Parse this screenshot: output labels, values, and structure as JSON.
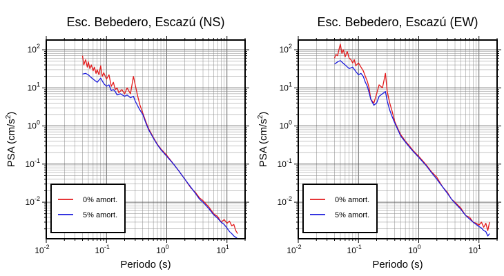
{
  "chart_data": [
    {
      "type": "line",
      "title": "Esc. Bebedero, Escazú (NS)",
      "xlabel": "Periodo (s)",
      "ylabel_main": "PSA (cm/s",
      "ylabel_sup": "2",
      "ylabel_close": ")",
      "xscale": "log",
      "yscale": "log",
      "xlim": [
        0.01,
        20
      ],
      "ylim": [
        0.0011,
        180
      ],
      "grid": true,
      "legend_position": "bottom-left",
      "x_ticks": [
        {
          "value": 0.01,
          "base": "10",
          "exp": "-2"
        },
        {
          "value": 0.1,
          "base": "10",
          "exp": "-1"
        },
        {
          "value": 1,
          "base": "10",
          "exp": "0"
        },
        {
          "value": 10,
          "base": "10",
          "exp": "1"
        }
      ],
      "y_ticks": [
        {
          "value": 0.01,
          "base": "10",
          "exp": "-2"
        },
        {
          "value": 0.1,
          "base": "10",
          "exp": "-1"
        },
        {
          "value": 1,
          "base": "10",
          "exp": "0"
        },
        {
          "value": 10,
          "base": "10",
          "exp": "1"
        },
        {
          "value": 100,
          "base": "10",
          "exp": "2"
        }
      ],
      "series": [
        {
          "name": "0% amort.",
          "color": "#e31a1c",
          "x": [
            0.04,
            0.042,
            0.045,
            0.048,
            0.05,
            0.053,
            0.056,
            0.06,
            0.063,
            0.067,
            0.07,
            0.075,
            0.08,
            0.085,
            0.09,
            0.1,
            0.11,
            0.12,
            0.13,
            0.14,
            0.15,
            0.16,
            0.18,
            0.2,
            0.22,
            0.25,
            0.28,
            0.3,
            0.33,
            0.36,
            0.4,
            0.45,
            0.5,
            0.6,
            0.7,
            0.8,
            1.0,
            1.3,
            1.6,
            2.0,
            2.5,
            3.0,
            3.5,
            4.0,
            5.0,
            6.0,
            7.0,
            8.0,
            9.0,
            10.0,
            11.0,
            12.0,
            13.0,
            14.0,
            15.0
          ],
          "y": [
            70,
            40,
            55,
            35,
            48,
            32,
            40,
            28,
            35,
            24,
            30,
            22,
            38,
            20,
            25,
            17,
            22,
            11,
            14,
            9,
            10,
            7.5,
            9,
            7,
            10,
            7,
            20,
            12,
            6,
            3.5,
            2.2,
            1.3,
            0.85,
            0.5,
            0.33,
            0.25,
            0.17,
            0.1,
            0.065,
            0.04,
            0.024,
            0.018,
            0.013,
            0.011,
            0.0075,
            0.005,
            0.0042,
            0.003,
            0.0035,
            0.0028,
            0.0032,
            0.0024,
            0.0026,
            0.0018,
            0.0015
          ]
        },
        {
          "name": "5% amort.",
          "color": "#1a1adb",
          "x": [
            0.04,
            0.045,
            0.05,
            0.055,
            0.06,
            0.07,
            0.08,
            0.09,
            0.1,
            0.11,
            0.12,
            0.13,
            0.14,
            0.15,
            0.17,
            0.2,
            0.22,
            0.25,
            0.28,
            0.3,
            0.35,
            0.4,
            0.45,
            0.5,
            0.6,
            0.7,
            0.8,
            1.0,
            1.3,
            1.6,
            2.0,
            2.5,
            3.0,
            3.5,
            4.0,
            5.0,
            6.0,
            7.0,
            8.0,
            9.0,
            10.0,
            11.0,
            12.0,
            13.0,
            14.0,
            15.0
          ],
          "y": [
            23,
            24,
            22,
            19,
            17,
            14,
            18,
            13,
            11,
            12,
            8.5,
            9,
            8,
            6.5,
            7,
            6,
            6.5,
            5.5,
            6,
            4.5,
            2.8,
            2.0,
            1.2,
            0.8,
            0.48,
            0.32,
            0.24,
            0.16,
            0.1,
            0.065,
            0.04,
            0.025,
            0.017,
            0.012,
            0.01,
            0.0068,
            0.0047,
            0.0038,
            0.003,
            0.0026,
            0.0021,
            0.0017,
            0.0015,
            0.0013,
            0.0012,
            0.0011
          ]
        }
      ]
    },
    {
      "type": "line",
      "title": "Esc. Bebedero, Escazú (EW)",
      "xlabel": "Periodo (s)",
      "ylabel_main": "PSA (cm/s",
      "ylabel_sup": "2",
      "ylabel_close": ")",
      "xscale": "log",
      "yscale": "log",
      "xlim": [
        0.01,
        20
      ],
      "ylim": [
        0.0011,
        180
      ],
      "grid": true,
      "legend_position": "bottom-left",
      "x_ticks": [
        {
          "value": 0.01,
          "base": "10",
          "exp": "-2"
        },
        {
          "value": 0.1,
          "base": "10",
          "exp": "-1"
        },
        {
          "value": 1,
          "base": "10",
          "exp": "0"
        },
        {
          "value": 10,
          "base": "10",
          "exp": "1"
        }
      ],
      "y_ticks": [
        {
          "value": 0.01,
          "base": "10",
          "exp": "-2"
        },
        {
          "value": 0.1,
          "base": "10",
          "exp": "-1"
        },
        {
          "value": 1,
          "base": "10",
          "exp": "0"
        },
        {
          "value": 10,
          "base": "10",
          "exp": "1"
        },
        {
          "value": 100,
          "base": "10",
          "exp": "2"
        }
      ],
      "series": [
        {
          "name": "0% amort.",
          "color": "#e31a1c",
          "x": [
            0.04,
            0.042,
            0.045,
            0.048,
            0.05,
            0.053,
            0.056,
            0.06,
            0.065,
            0.07,
            0.075,
            0.08,
            0.085,
            0.09,
            0.1,
            0.11,
            0.12,
            0.13,
            0.14,
            0.15,
            0.16,
            0.18,
            0.2,
            0.22,
            0.25,
            0.28,
            0.3,
            0.33,
            0.36,
            0.4,
            0.45,
            0.5,
            0.6,
            0.7,
            0.8,
            1.0,
            1.3,
            1.6,
            2.0,
            2.5,
            3.0,
            3.5,
            4.0,
            5.0,
            6.0,
            7.0,
            8.0,
            9.0,
            10.0,
            11.0,
            12.0,
            13.0,
            14.0,
            15.0
          ],
          "y": [
            60,
            75,
            70,
            110,
            140,
            80,
            100,
            65,
            90,
            60,
            55,
            45,
            55,
            38,
            45,
            35,
            28,
            20,
            15,
            10,
            5,
            4,
            7,
            12,
            10,
            24,
            8,
            4,
            2.5,
            1.3,
            0.85,
            0.6,
            0.4,
            0.3,
            0.23,
            0.16,
            0.1,
            0.065,
            0.045,
            0.025,
            0.018,
            0.012,
            0.01,
            0.007,
            0.0045,
            0.004,
            0.003,
            0.0028,
            0.0025,
            0.003,
            0.0022,
            0.0028,
            0.0018,
            0.003
          ]
        },
        {
          "name": "5% amort.",
          "color": "#1a1adb",
          "x": [
            0.04,
            0.045,
            0.05,
            0.055,
            0.06,
            0.07,
            0.08,
            0.09,
            0.1,
            0.11,
            0.12,
            0.13,
            0.14,
            0.15,
            0.16,
            0.18,
            0.2,
            0.22,
            0.25,
            0.28,
            0.3,
            0.33,
            0.36,
            0.4,
            0.45,
            0.5,
            0.6,
            0.7,
            0.8,
            1.0,
            1.3,
            1.6,
            2.0,
            2.5,
            3.0,
            3.5,
            4.0,
            5.0,
            6.0,
            7.0,
            8.0,
            9.0,
            10.0,
            11.0,
            12.0,
            13.0,
            14.0,
            15.0
          ],
          "y": [
            42,
            48,
            52,
            45,
            40,
            32,
            35,
            27,
            22,
            24,
            20,
            14,
            11,
            7.5,
            5,
            3.5,
            4,
            6,
            7,
            8,
            4.5,
            2.6,
            1.8,
            1.2,
            0.8,
            0.55,
            0.38,
            0.28,
            0.22,
            0.15,
            0.095,
            0.062,
            0.04,
            0.025,
            0.017,
            0.012,
            0.0095,
            0.0065,
            0.0045,
            0.0036,
            0.003,
            0.0026,
            0.0023,
            0.0021,
            0.0018,
            0.0017,
            0.0013,
            0.0015
          ]
        }
      ]
    }
  ]
}
